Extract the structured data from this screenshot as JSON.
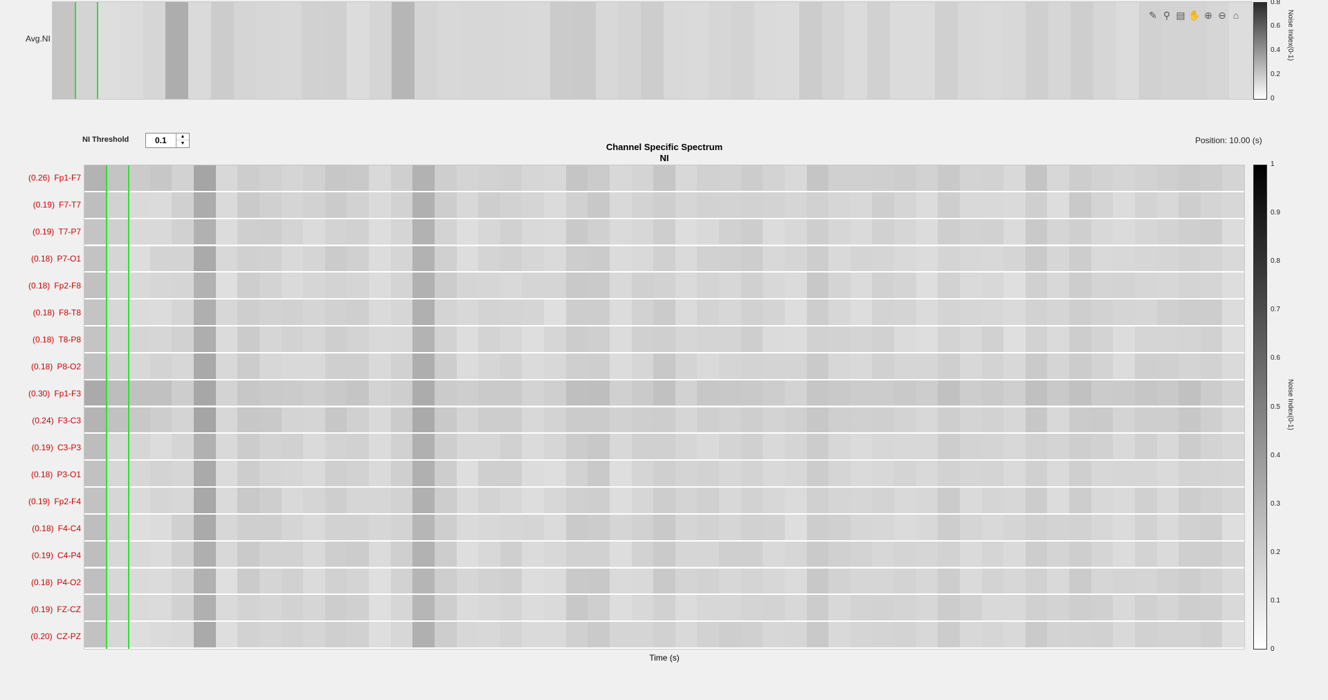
{
  "top_panel": {
    "ylabel": "Avg.NI",
    "colorbar_label": "Noise Index(0-1)",
    "colorbar_ticks": [
      "0.8",
      "0.6",
      "0.4",
      "0.2",
      "0"
    ]
  },
  "toolbar": {
    "icons": [
      "brush-icon",
      "datatip-icon",
      "legend-icon",
      "pan-hand-icon",
      "zoom-in-icon",
      "zoom-out-icon",
      "home-icon"
    ]
  },
  "controls": {
    "threshold_label": "NI Threshold",
    "threshold_value": "0.1",
    "position_text": "Position: 10.00 (s)"
  },
  "main_panel": {
    "title": "Channel Specific Spectrum",
    "subtitle": "NI",
    "xlabel": "Time (s)",
    "colorbar_label": "Noise Index(0-1)",
    "colorbar_ticks": [
      "1",
      "0.9",
      "0.8",
      "0.7",
      "0.6",
      "0.5",
      "0.4",
      "0.3",
      "0.2",
      "0.1",
      "0"
    ]
  },
  "channels": [
    {
      "value": "(0.26)",
      "name": "Fp1-F7"
    },
    {
      "value": "(0.19)",
      "name": "F7-T7"
    },
    {
      "value": "(0.19)",
      "name": "T7-P7"
    },
    {
      "value": "(0.18)",
      "name": "P7-O1"
    },
    {
      "value": "(0.18)",
      "name": "Fp2-F8"
    },
    {
      "value": "(0.18)",
      "name": "F8-T8"
    },
    {
      "value": "(0.18)",
      "name": "T8-P8"
    },
    {
      "value": "(0.18)",
      "name": "P8-O2"
    },
    {
      "value": "(0.30)",
      "name": "Fp1-F3"
    },
    {
      "value": "(0.24)",
      "name": "F3-C3"
    },
    {
      "value": "(0.19)",
      "name": "C3-P3"
    },
    {
      "value": "(0.18)",
      "name": "P3-O1"
    },
    {
      "value": "(0.19)",
      "name": "Fp2-F4"
    },
    {
      "value": "(0.18)",
      "name": "F4-C4"
    },
    {
      "value": "(0.19)",
      "name": "C4-P4"
    },
    {
      "value": "(0.18)",
      "name": "P4-O2"
    },
    {
      "value": "(0.19)",
      "name": "FZ-CZ"
    },
    {
      "value": "(0.20)",
      "name": "CZ-PZ"
    }
  ],
  "colors": {
    "marker": "#33dd33",
    "channel_label": "#cc0000"
  }
}
